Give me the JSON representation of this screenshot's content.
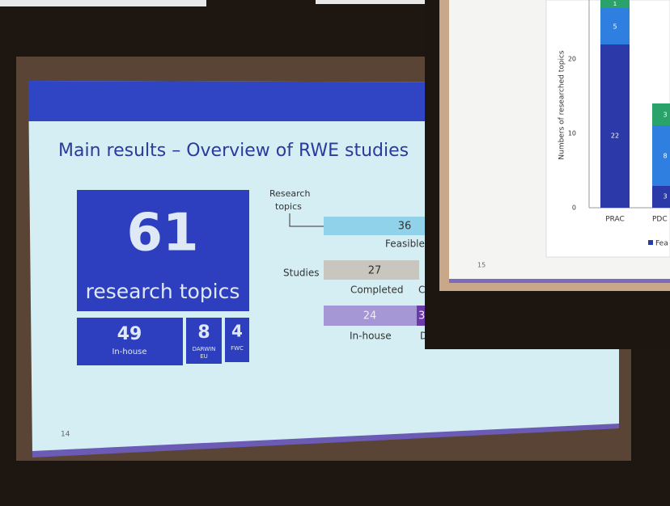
{
  "slide_left": {
    "title": "Main results – Overview of RWE studies",
    "total": "61",
    "total_label": "research topics",
    "split": [
      {
        "value": "49",
        "label": [
          "In-house"
        ]
      },
      {
        "value": "8",
        "label": [
          "DARWIN",
          "EU"
        ]
      },
      {
        "value": "4",
        "label": [
          "FWC"
        ]
      }
    ],
    "research_topics_label": [
      "Research",
      "topics"
    ],
    "feasible_value": "36",
    "feasible_label": "Feasible",
    "studies_label": "Studies",
    "completed_value": "27",
    "completed_label": "Completed",
    "completed_next": "C",
    "inhouse_value": "24",
    "other_value": "3",
    "inhouse_label": "In-house",
    "other_label": "D",
    "page": "14"
  },
  "slide_right": {
    "y_axis_label": "Numbers of researched topics",
    "yticks": [
      "20",
      "10",
      "0"
    ],
    "categories": [
      "PRAC",
      "PDC"
    ],
    "segments": [
      [
        "22",
        "5",
        "1"
      ],
      [
        "3",
        "8",
        "3"
      ]
    ],
    "legend": "Fea",
    "page": "15"
  }
}
